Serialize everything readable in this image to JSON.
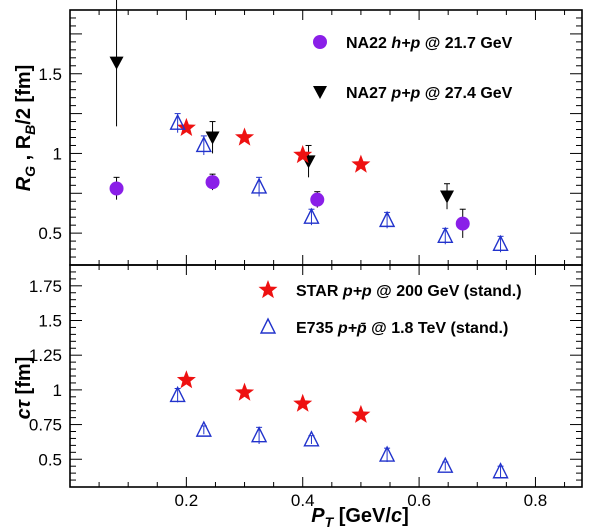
{
  "chart_data": [
    {
      "type": "scatter",
      "panel": "top",
      "ylabel": "R_G , R_B/2 [fm]",
      "xlim": [
        0.0,
        0.88
      ],
      "ylim": [
        0.3,
        1.9
      ],
      "yticks": [
        "0.5",
        "1",
        "1.5"
      ],
      "series": [
        {
          "name": "NA22 h+p @ 21.7 GeV",
          "marker": "circle",
          "color": "#8a1fe8",
          "points": [
            {
              "x": 0.08,
              "y": 0.78,
              "err": 0.07
            },
            {
              "x": 0.245,
              "y": 0.82,
              "err": 0.05
            },
            {
              "x": 0.425,
              "y": 0.71,
              "err": 0.05
            },
            {
              "x": 0.675,
              "y": 0.56,
              "err": 0.09
            }
          ]
        },
        {
          "name": "NA27 p+p @ 27.4 GeV",
          "marker": "triangle-down",
          "color": "#000000",
          "points": [
            {
              "x": 0.08,
              "y": 1.57,
              "err": 0.4
            },
            {
              "x": 0.245,
              "y": 1.1,
              "err": 0.1
            },
            {
              "x": 0.41,
              "y": 0.95,
              "err": 0.1
            },
            {
              "x": 0.648,
              "y": 0.73,
              "err": 0.08
            }
          ]
        },
        {
          "name": "STAR p+p @ 200 GeV (stand.)",
          "marker": "star",
          "color": "#ee1111",
          "points": [
            {
              "x": 0.2,
              "y": 1.16
            },
            {
              "x": 0.3,
              "y": 1.1
            },
            {
              "x": 0.4,
              "y": 0.99
            },
            {
              "x": 0.5,
              "y": 0.93
            }
          ]
        },
        {
          "name": "E735 p+p̄ @ 1.8 TeV (stand.)",
          "marker": "triangle-up-open",
          "color": "#2233cc",
          "points": [
            {
              "x": 0.185,
              "y": 1.19,
              "err": 0.06
            },
            {
              "x": 0.23,
              "y": 1.05,
              "err": 0.06
            },
            {
              "x": 0.325,
              "y": 0.79,
              "err": 0.06
            },
            {
              "x": 0.415,
              "y": 0.6,
              "err": 0.05
            },
            {
              "x": 0.545,
              "y": 0.58,
              "err": 0.05
            },
            {
              "x": 0.645,
              "y": 0.48,
              "err": 0.05
            },
            {
              "x": 0.74,
              "y": 0.43,
              "err": 0.05
            }
          ]
        }
      ]
    },
    {
      "type": "scatter",
      "panel": "bottom",
      "xlabel": "P_T [GeV/c]",
      "ylabel": "cτ [fm]",
      "xlim": [
        0.0,
        0.88
      ],
      "ylim": [
        0.3,
        1.9
      ],
      "xticks": [
        "0.2",
        "0.4",
        "0.6",
        "0.8"
      ],
      "yticks": [
        "0.5",
        "0.75",
        "1",
        "1.25",
        "1.5",
        "1.75"
      ],
      "series": [
        {
          "name": "STAR p+p @ 200 GeV (stand.)",
          "marker": "star",
          "color": "#ee1111",
          "points": [
            {
              "x": 0.2,
              "y": 1.07
            },
            {
              "x": 0.3,
              "y": 0.98
            },
            {
              "x": 0.4,
              "y": 0.9
            },
            {
              "x": 0.5,
              "y": 0.82
            }
          ]
        },
        {
          "name": "E735 p+p̄ @ 1.8 TeV (stand.)",
          "marker": "triangle-up-open",
          "color": "#2233cc",
          "points": [
            {
              "x": 0.185,
              "y": 0.96,
              "err": 0.05
            },
            {
              "x": 0.23,
              "y": 0.71,
              "err": 0.03
            },
            {
              "x": 0.325,
              "y": 0.67,
              "err": 0.06
            },
            {
              "x": 0.415,
              "y": 0.64,
              "err": 0.03
            },
            {
              "x": 0.545,
              "y": 0.53,
              "err": 0.05
            },
            {
              "x": 0.645,
              "y": 0.45,
              "err": 0.03
            },
            {
              "x": 0.74,
              "y": 0.41,
              "err": 0.04
            }
          ]
        }
      ]
    }
  ],
  "legend": {
    "top": [
      {
        "series": 0,
        "prefix": "NA22",
        "ital": "h+p",
        "suffix": "@ 21.7 GeV"
      },
      {
        "series": 1,
        "prefix": "NA27",
        "ital": "p+p",
        "suffix": "@ 27.4 GeV"
      }
    ],
    "bottom": [
      {
        "series": 2,
        "prefix": "STAR",
        "ital": "p+p",
        "suffix": "@ 200 GeV (stand.)"
      },
      {
        "series": 3,
        "prefix": "E735",
        "ital": "p+p̄",
        "suffix": "@ 1.8 TeV (stand.)"
      }
    ]
  },
  "axis_text": {
    "top_ylabel_main": "R",
    "top_ylabel_sub1": "G",
    "top_ylabel_mid": " , R",
    "top_ylabel_sub2": "B",
    "top_ylabel_tail": "/2 [fm]",
    "bottom_ylabel_ital": "cτ",
    "bottom_ylabel_tail": " [fm]",
    "xlabel_main": "P",
    "xlabel_sub": "T",
    "xlabel_tail": " [GeV/",
    "xlabel_ital": "c",
    "xlabel_close": "]"
  }
}
